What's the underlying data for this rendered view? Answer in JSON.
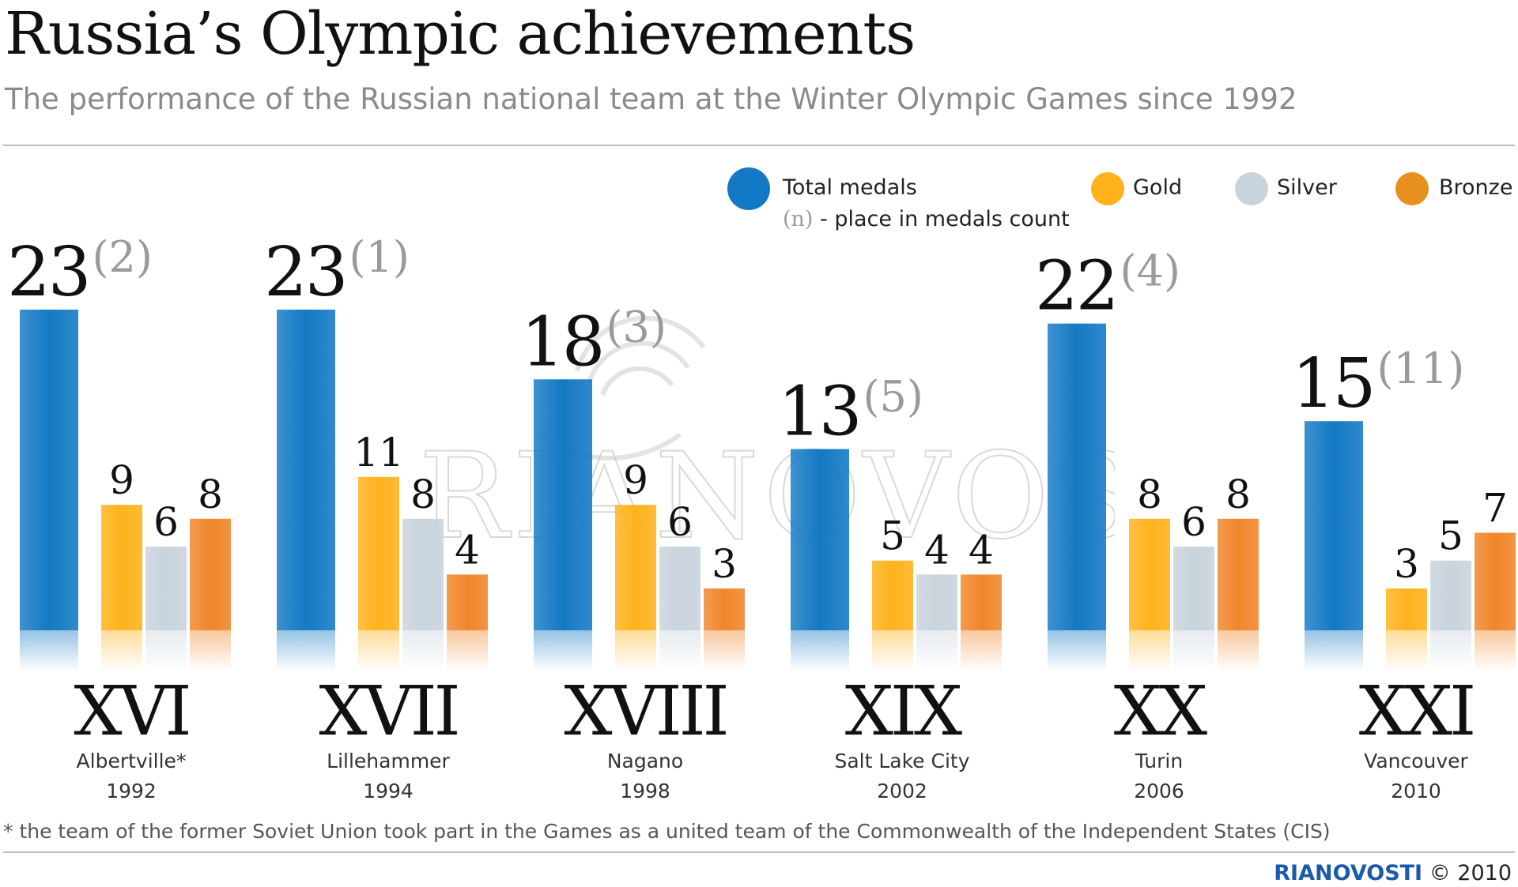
{
  "title": "Russia’s Olympic achievements",
  "subtitle": "The performance of the Russian national team at the Winter Olympic Games since 1992",
  "legend": {
    "total": "Total medals",
    "place_note_n": "(n)",
    "place_note_text": " - place in medals count",
    "gold": "Gold",
    "silver": "Silver",
    "bronze": "Bronze"
  },
  "colors": {
    "total": "#1479c4",
    "gold": "#ffb21c",
    "silver": "#c9d3dc",
    "bronze": "#f0862a"
  },
  "footnote": "* the team of the former Soviet Union took part in the Games as a united team of the Commonwealth of the Independent States (CIS)",
  "brand": {
    "ria": "RIANOVOSTI",
    "copy": "© 2010"
  },
  "watermark_text": "RIANOVOSTI",
  "chart_data": {
    "type": "bar",
    "categories": [
      "XVI",
      "XVII",
      "XVIII",
      "XIX",
      "XX",
      "XXI"
    ],
    "cities": [
      "Albertville*",
      "Lillehammer",
      "Nagano",
      "Salt Lake City",
      "Turin",
      "Vancouver"
    ],
    "years": [
      "1992",
      "1994",
      "1998",
      "2002",
      "2006",
      "2010"
    ],
    "places": [
      "(2)",
      "(1)",
      "(3)",
      "(5)",
      "(4)",
      "(11)"
    ],
    "series": [
      {
        "name": "Total medals",
        "values": [
          23,
          23,
          18,
          13,
          22,
          15
        ]
      },
      {
        "name": "Gold",
        "values": [
          9,
          11,
          9,
          5,
          8,
          3
        ]
      },
      {
        "name": "Silver",
        "values": [
          6,
          8,
          6,
          4,
          6,
          5
        ]
      },
      {
        "name": "Bronze",
        "values": [
          8,
          4,
          3,
          4,
          8,
          7
        ]
      }
    ],
    "ylim": [
      0,
      23
    ],
    "grid": false,
    "legend_position": "top-right"
  }
}
